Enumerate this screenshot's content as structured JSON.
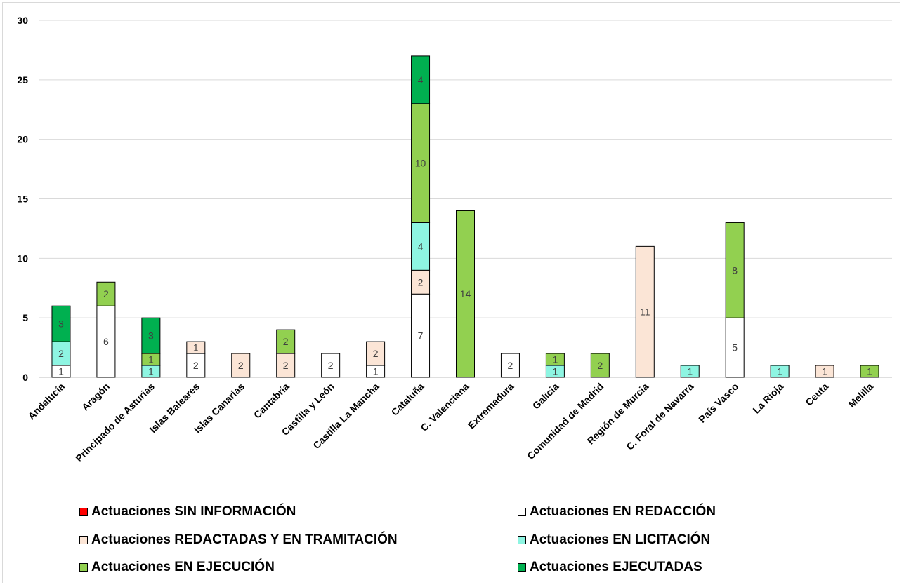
{
  "chart_data": {
    "type": "bar",
    "stacked": true,
    "categories": [
      "Andalucía",
      "Aragón",
      "Principado de Asturias",
      "Islas Baleares",
      "Islas Canarias",
      "Cantabria",
      "Castilla y León",
      "Castilla La Mancha",
      "Cataluña",
      "C. Valenciana",
      "Extremadura",
      "Galicia",
      "Comunidad de Madrid",
      "Región de Murcia",
      "C. Foral de Navarra",
      "País Vasco",
      "La Rioja",
      "Ceuta",
      "Melilla"
    ],
    "series": [
      {
        "name": "Actuaciones SIN INFORMACIÓN",
        "color": "#ff0000",
        "values": [
          0,
          0,
          0,
          0,
          0,
          0,
          0,
          0,
          0,
          0,
          0,
          0,
          0,
          0,
          0,
          0,
          0,
          0,
          0
        ]
      },
      {
        "name": "Actuaciones EN REDACCIÓN",
        "color": "#ffffff",
        "values": [
          1,
          6,
          0,
          2,
          0,
          0,
          2,
          1,
          7,
          0,
          2,
          0,
          0,
          0,
          0,
          5,
          0,
          0,
          0
        ]
      },
      {
        "name": "Actuaciones REDACTADAS Y EN TRAMITACIÓN",
        "color": "#fbe5d6",
        "values": [
          0,
          0,
          0,
          1,
          2,
          2,
          0,
          2,
          2,
          0,
          0,
          0,
          0,
          11,
          0,
          0,
          0,
          1,
          0
        ]
      },
      {
        "name": "Actuaciones EN LICITACIÓN",
        "color": "#8ef5e2",
        "values": [
          2,
          0,
          1,
          0,
          0,
          0,
          0,
          0,
          4,
          0,
          0,
          1,
          0,
          0,
          1,
          0,
          1,
          0,
          0
        ]
      },
      {
        "name": "Actuaciones EN EJECUCIÓN",
        "color": "#92d050",
        "values": [
          0,
          2,
          1,
          0,
          0,
          2,
          0,
          0,
          10,
          14,
          0,
          1,
          2,
          0,
          0,
          8,
          0,
          0,
          1
        ]
      },
      {
        "name": "Actuaciones EJECUTADAS",
        "color": "#00b050",
        "values": [
          3,
          0,
          3,
          0,
          0,
          0,
          0,
          0,
          4,
          0,
          0,
          0,
          0,
          0,
          0,
          0,
          0,
          0,
          0
        ]
      }
    ],
    "ylim": [
      0,
      30
    ],
    "yticks": [
      0,
      5,
      10,
      15,
      20,
      25,
      30
    ],
    "grid": true,
    "legend_position": "bottom",
    "data_labels": true
  }
}
